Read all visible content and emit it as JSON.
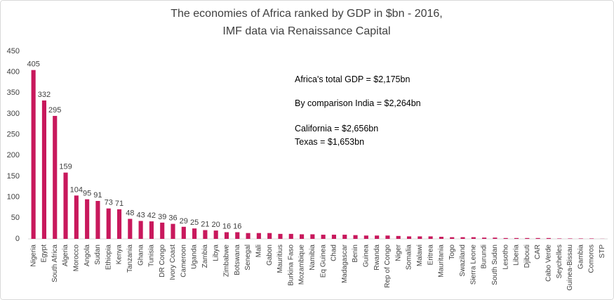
{
  "chart_data": {
    "type": "bar",
    "title": "The economies of Africa ranked by GDP in $bn - 2016,",
    "subtitle": "IMF data via Renaissance Capital",
    "annotations": [
      "Africa's total GDP = $2,175bn",
      "By comparison India = $2,264bn",
      "California = $2,656bn",
      "Texas = $1,653bn"
    ],
    "categories": [
      "Nigeria",
      "Egypt",
      "South Africa",
      "Algeria",
      "Morocco",
      "Angola",
      "Sudan",
      "Ethiopia",
      "Kenya",
      "Tanzania",
      "Ghana",
      "Tunisia",
      "DR Congo",
      "Ivory Coast",
      "Cameroon",
      "Uganda",
      "Zambia",
      "Libya",
      "Zimbabwe",
      "Botswana",
      "Senegal",
      "Mali",
      "Gabon",
      "Mauritius",
      "Burkina Faso",
      "Mozambique",
      "Namibia",
      "Eq Guinea",
      "Chad",
      "Madagascar",
      "Benin",
      "Guinea",
      "Rwanda",
      "Rep of Congo",
      "Niger",
      "Somalia",
      "Malawi",
      "Eritrea",
      "Mauritania",
      "Togo",
      "Swaziland",
      "Sierra Leone",
      "Burundi",
      "South Sudan",
      "Lesotho",
      "Liberia",
      "Djibouti",
      "CAR",
      "Cabo Verde",
      "Seychelles",
      "Guinea-Bissau",
      "Gambia",
      "Comoros",
      "STP"
    ],
    "values": [
      405,
      332,
      295,
      159,
      104,
      95,
      91,
      73,
      71,
      48,
      43,
      42,
      39,
      36,
      29,
      25,
      21,
      20,
      16,
      16,
      14,
      14,
      14,
      12,
      12,
      11,
      11,
      10,
      10,
      10,
      9,
      8,
      8,
      8,
      7,
      6,
      6,
      6,
      5,
      4,
      4,
      4,
      3,
      3,
      2,
      2,
      2,
      2,
      2,
      1,
      1,
      1,
      1,
      0.3
    ],
    "value_labels": [
      "405",
      "332",
      "295",
      "159",
      "104",
      "95",
      "91",
      "73",
      "71",
      "48",
      "43",
      "42",
      "39",
      "36",
      "29",
      "25",
      "21",
      "20",
      "16",
      "16",
      null,
      null,
      null,
      null,
      null,
      null,
      null,
      null,
      null,
      null,
      null,
      null,
      null,
      null,
      null,
      null,
      null,
      null,
      null,
      null,
      null,
      null,
      null,
      null,
      null,
      null,
      null,
      null,
      null,
      null,
      null,
      null,
      null,
      null
    ],
    "color": "#c8185c",
    "ylim": [
      0,
      450
    ],
    "yticks": [
      0,
      50,
      100,
      150,
      200,
      250,
      300,
      350,
      400,
      450
    ],
    "grid": false
  }
}
